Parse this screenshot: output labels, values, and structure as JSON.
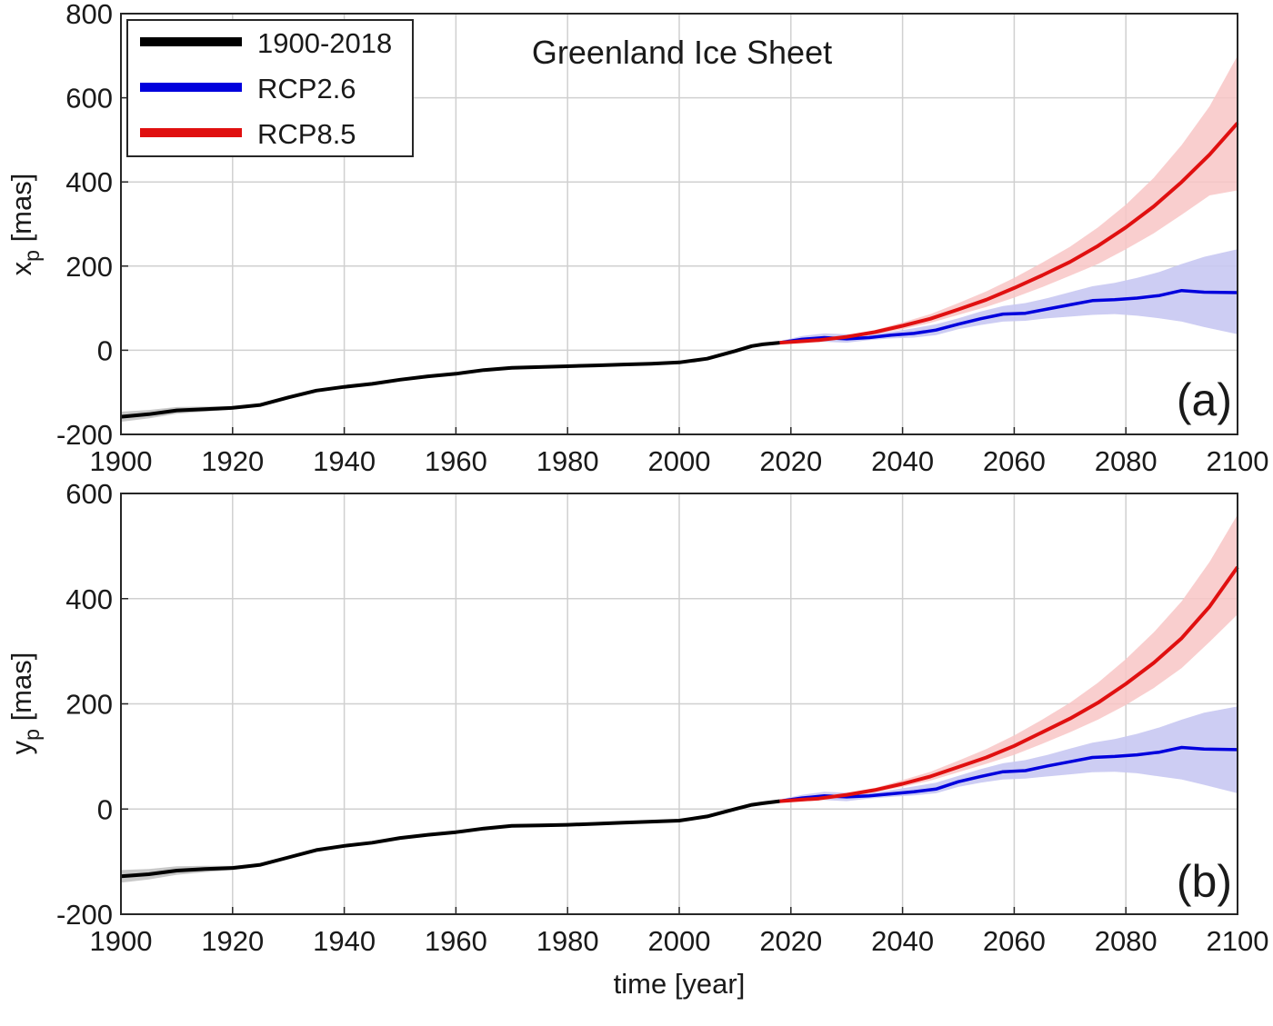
{
  "chart_data": {
    "title": "Greenland Ice Sheet",
    "xlabel": "time [year]",
    "colors": {
      "observed": "#000000",
      "rcp26": "#0000dd",
      "rcp85": "#e01010",
      "rcp26_band": "#c8c8f2",
      "rcp85_band": "#f8c6c6",
      "observed_band": "#c8c8c8",
      "grid": "#d0d0d0"
    },
    "legend": [
      {
        "label": "1900-2018",
        "series": "observed"
      },
      {
        "label": "RCP2.6",
        "series": "rcp26"
      },
      {
        "label": "RCP8.5",
        "series": "rcp85"
      }
    ],
    "panels": [
      {
        "tag": "(a)",
        "type": "line",
        "ylabel_main": "x",
        "ylabel_sub": "p",
        "ylabel_unit": " [mas]",
        "xlim": [
          1900,
          2100
        ],
        "ylim": [
          -200,
          800
        ],
        "xticks": [
          "1900",
          "1920",
          "1940",
          "1960",
          "1980",
          "2000",
          "2020",
          "2040",
          "2060",
          "2080",
          "2100"
        ],
        "yticks": [
          "-200",
          "0",
          "200",
          "400",
          "600",
          "800"
        ],
        "grid": true,
        "observed": {
          "x": [
            1900,
            1905,
            1910,
            1915,
            1920,
            1925,
            1930,
            1935,
            1940,
            1945,
            1950,
            1955,
            1960,
            1965,
            1970,
            1975,
            1980,
            1985,
            1990,
            1995,
            2000,
            2005,
            2010,
            2013,
            2015,
            2018
          ],
          "y": [
            -158,
            -152,
            -143,
            -140,
            -137,
            -130,
            -112,
            -96,
            -87,
            -80,
            -70,
            -62,
            -56,
            -47,
            -42,
            -40,
            -38,
            -36,
            -34,
            -32,
            -29,
            -20,
            -2,
            10,
            14,
            18
          ],
          "band": 12
        },
        "rcp26": {
          "x": [
            2018,
            2022,
            2026,
            2030,
            2034,
            2038,
            2042,
            2046,
            2050,
            2054,
            2058,
            2062,
            2066,
            2070,
            2074,
            2078,
            2082,
            2086,
            2090,
            2094,
            2100
          ],
          "y": [
            18,
            26,
            30,
            27,
            30,
            36,
            40,
            48,
            62,
            75,
            86,
            88,
            98,
            108,
            118,
            120,
            124,
            130,
            142,
            138,
            137
          ],
          "lower": [
            14,
            18,
            20,
            18,
            24,
            28,
            30,
            36,
            50,
            60,
            68,
            70,
            76,
            80,
            84,
            86,
            82,
            76,
            68,
            55,
            38
          ],
          "upper": [
            22,
            34,
            40,
            38,
            38,
            44,
            52,
            62,
            76,
            92,
            105,
            112,
            124,
            138,
            152,
            160,
            172,
            186,
            205,
            222,
            240
          ]
        },
        "rcp85": {
          "x": [
            2018,
            2025,
            2030,
            2035,
            2040,
            2045,
            2050,
            2055,
            2060,
            2065,
            2070,
            2075,
            2080,
            2085,
            2090,
            2095,
            2100
          ],
          "y": [
            18,
            24,
            32,
            43,
            58,
            75,
            97,
            120,
            148,
            178,
            210,
            248,
            292,
            342,
            400,
            465,
            540
          ],
          "lower": [
            16,
            20,
            28,
            38,
            50,
            65,
            84,
            103,
            125,
            150,
            177,
            205,
            240,
            278,
            322,
            368,
            380
          ],
          "upper": [
            20,
            28,
            36,
            48,
            66,
            86,
            112,
            140,
            172,
            208,
            246,
            292,
            346,
            410,
            488,
            580,
            700
          ]
        }
      },
      {
        "tag": "(b)",
        "type": "line",
        "ylabel_main": "y",
        "ylabel_sub": "p",
        "ylabel_unit": " [mas]",
        "xlim": [
          1900,
          2100
        ],
        "ylim": [
          -200,
          600
        ],
        "xticks": [
          "1900",
          "1920",
          "1940",
          "1960",
          "1980",
          "2000",
          "2020",
          "2040",
          "2060",
          "2080",
          "2100"
        ],
        "yticks": [
          "-200",
          "0",
          "200",
          "400",
          "600"
        ],
        "grid": true,
        "observed": {
          "x": [
            1900,
            1905,
            1910,
            1915,
            1920,
            1925,
            1930,
            1935,
            1940,
            1945,
            1950,
            1955,
            1960,
            1965,
            1970,
            1975,
            1980,
            1985,
            1990,
            1995,
            2000,
            2005,
            2010,
            2013,
            2015,
            2018
          ],
          "y": [
            -128,
            -124,
            -117,
            -114,
            -112,
            -106,
            -92,
            -78,
            -70,
            -64,
            -55,
            -49,
            -44,
            -37,
            -32,
            -31,
            -30,
            -28,
            -26,
            -24,
            -22,
            -14,
            0,
            8,
            11,
            15
          ],
          "band": 12
        },
        "rcp26": {
          "x": [
            2018,
            2022,
            2026,
            2030,
            2034,
            2038,
            2042,
            2046,
            2050,
            2054,
            2058,
            2062,
            2066,
            2070,
            2074,
            2078,
            2082,
            2086,
            2090,
            2094,
            2100
          ],
          "y": [
            15,
            21,
            25,
            23,
            25,
            29,
            33,
            38,
            52,
            62,
            71,
            73,
            82,
            90,
            98,
            100,
            103,
            108,
            117,
            114,
            113
          ],
          "lower": [
            12,
            15,
            17,
            15,
            20,
            23,
            26,
            30,
            42,
            50,
            56,
            58,
            62,
            66,
            70,
            71,
            68,
            62,
            56,
            46,
            30
          ],
          "upper": [
            18,
            27,
            33,
            31,
            30,
            36,
            43,
            50,
            63,
            76,
            87,
            93,
            103,
            115,
            126,
            133,
            143,
            155,
            170,
            183,
            195
          ]
        },
        "rcp85": {
          "x": [
            2018,
            2025,
            2030,
            2035,
            2040,
            2045,
            2050,
            2055,
            2060,
            2065,
            2070,
            2075,
            2080,
            2085,
            2090,
            2095,
            2100
          ],
          "y": [
            15,
            20,
            27,
            36,
            48,
            62,
            80,
            98,
            120,
            146,
            172,
            202,
            238,
            278,
            325,
            385,
            460
          ],
          "lower": [
            13,
            16,
            23,
            32,
            42,
            54,
            70,
            86,
            103,
            124,
            146,
            170,
            198,
            230,
            268,
            318,
            370
          ],
          "upper": [
            17,
            24,
            31,
            40,
            55,
            71,
            92,
            114,
            140,
            170,
            202,
            240,
            285,
            336,
            395,
            470,
            560
          ]
        }
      }
    ]
  }
}
